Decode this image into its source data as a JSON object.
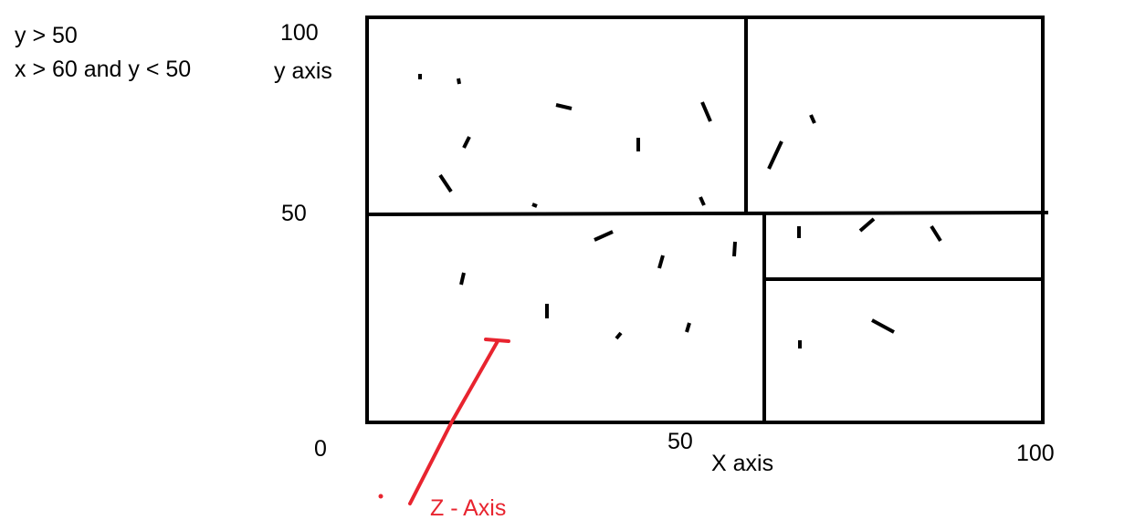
{
  "notes": {
    "line1": "y > 50",
    "line2": "x > 60 and y < 50"
  },
  "y_axis": {
    "top_tick": "100",
    "label": "y axis",
    "mid_tick": "50"
  },
  "x_axis": {
    "origin": "0",
    "mid_tick": "50",
    "label": "X axis",
    "end_tick": "100"
  },
  "z_axis": {
    "label": "Z - Axis"
  },
  "colors": {
    "ink": "#000000",
    "z_axis": "#e8242f",
    "background": "#ffffff"
  }
}
